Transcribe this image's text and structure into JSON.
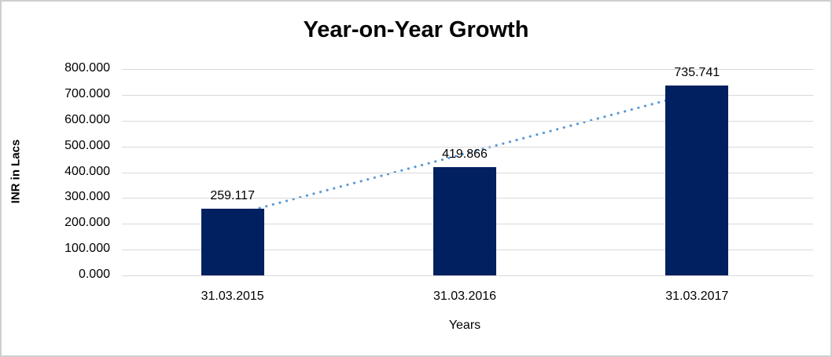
{
  "chart_data": {
    "type": "bar",
    "title": "Year-on-Year Growth",
    "xlabel": "Years",
    "ylabel": "INR in Lacs",
    "categories": [
      "31.03.2015",
      "31.03.2016",
      "31.03.2017"
    ],
    "values": [
      259.117,
      419.866,
      735.741
    ],
    "data_labels": [
      "259.117",
      "419.866",
      "735.741"
    ],
    "ylim": [
      0,
      800
    ],
    "ytick_step": 100,
    "ytick_labels": [
      "0.000",
      "100.000",
      "200.000",
      "300.000",
      "400.000",
      "500.000",
      "600.000",
      "700.000",
      "800.000"
    ],
    "grid": true,
    "legend": false,
    "bar_color": "#002060",
    "gridline_color": "#d9d9d9",
    "trendline": {
      "style": "dotted",
      "color": "#5b9bd5",
      "from_value": 233.3,
      "to_value": 709.9
    }
  }
}
